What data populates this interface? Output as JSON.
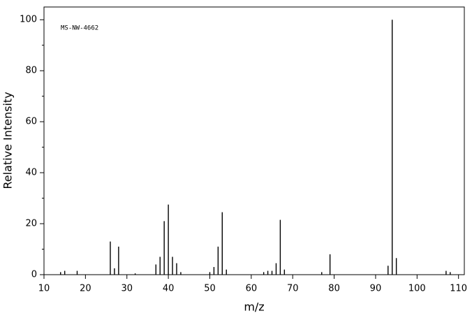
{
  "chart_data": {
    "type": "stem",
    "annotation": "MS-NW-4662",
    "x_label": "m/z",
    "y_label": "Relative Intensity",
    "color": "#000000",
    "x": [
      14,
      15,
      18,
      26,
      27,
      28,
      32,
      37,
      38,
      39,
      40,
      41,
      42,
      43,
      50,
      51,
      52,
      53,
      54,
      63,
      64,
      65,
      66,
      67,
      68,
      77,
      79,
      93,
      94,
      95,
      107,
      108
    ],
    "values": [
      1,
      1.5,
      1.5,
      13,
      2.5,
      11,
      0.5,
      4,
      7,
      21,
      27.5,
      7,
      4.5,
      1,
      1,
      3,
      11,
      24.5,
      2,
      1,
      1.5,
      1.5,
      4.5,
      21.5,
      2,
      1,
      8,
      3.5,
      100,
      6.5,
      1.5,
      1
    ],
    "xlim": [
      10,
      111.4
    ],
    "ylim": [
      0,
      105
    ],
    "xticks": [
      10,
      20,
      30,
      40,
      50,
      60,
      70,
      80,
      90,
      100,
      110
    ],
    "yticks": [
      0,
      20,
      40,
      60,
      80,
      100
    ],
    "yminorticks": [
      10,
      30,
      50,
      70,
      90
    ]
  }
}
